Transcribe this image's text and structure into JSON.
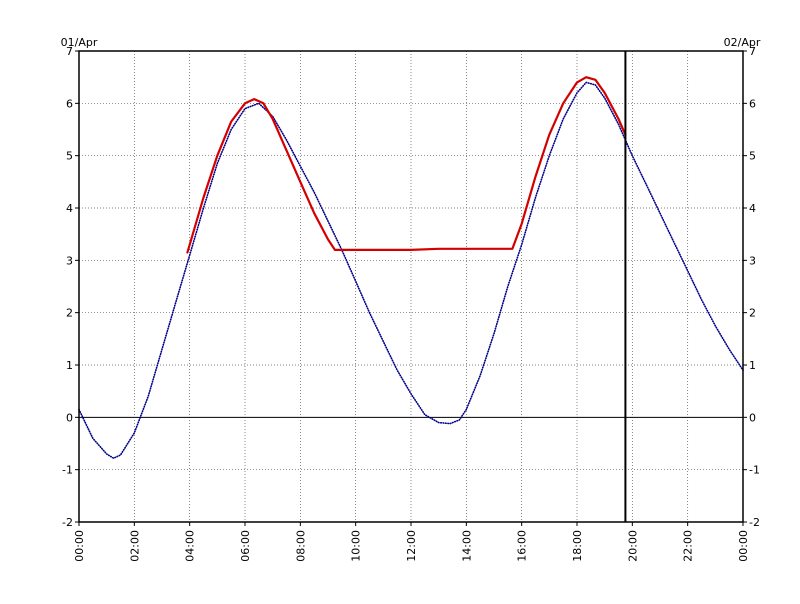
{
  "chart_data": {
    "type": "line",
    "date_labels": {
      "left": "01/Apr",
      "right": "02/Apr"
    },
    "x_ticks": [
      "00:00",
      "02:00",
      "04:00",
      "06:00",
      "08:00",
      "10:00",
      "12:00",
      "14:00",
      "16:00",
      "18:00",
      "20:00",
      "22:00",
      "00:00"
    ],
    "y_ticks": [
      "7",
      "6",
      "5",
      "4",
      "3",
      "2",
      "1",
      "0",
      "-1",
      "-2"
    ],
    "xlim": [
      "01/Apr 00:00",
      "02/Apr 00:00"
    ],
    "ylim": [
      -2,
      7
    ],
    "grid": true,
    "zero_line": 0,
    "current_time_marker": "19:45",
    "series": [
      {
        "color": "#00008b",
        "style": "dotted",
        "points": [
          [
            "00:00",
            0.15
          ],
          [
            "00:30",
            -0.4
          ],
          [
            "01:00",
            -0.7
          ],
          [
            "01:15",
            -0.78
          ],
          [
            "01:30",
            -0.72
          ],
          [
            "02:00",
            -0.3
          ],
          [
            "02:30",
            0.4
          ],
          [
            "03:00",
            1.3
          ],
          [
            "03:30",
            2.2
          ],
          [
            "04:00",
            3.1
          ],
          [
            "04:30",
            4.0
          ],
          [
            "05:00",
            4.85
          ],
          [
            "05:30",
            5.5
          ],
          [
            "06:00",
            5.9
          ],
          [
            "06:30",
            6.0
          ],
          [
            "07:00",
            5.75
          ],
          [
            "07:30",
            5.3
          ],
          [
            "08:00",
            4.8
          ],
          [
            "08:30",
            4.3
          ],
          [
            "09:00",
            3.75
          ],
          [
            "09:30",
            3.2
          ],
          [
            "10:00",
            2.6
          ],
          [
            "10:30",
            2.0
          ],
          [
            "11:00",
            1.45
          ],
          [
            "11:30",
            0.9
          ],
          [
            "12:00",
            0.45
          ],
          [
            "12:30",
            0.05
          ],
          [
            "13:00",
            -0.1
          ],
          [
            "13:25",
            -0.12
          ],
          [
            "13:45",
            -0.05
          ],
          [
            "14:00",
            0.15
          ],
          [
            "14:30",
            0.8
          ],
          [
            "15:00",
            1.6
          ],
          [
            "15:30",
            2.5
          ],
          [
            "16:00",
            3.3
          ],
          [
            "16:30",
            4.2
          ],
          [
            "17:00",
            5.0
          ],
          [
            "17:30",
            5.7
          ],
          [
            "18:00",
            6.2
          ],
          [
            "18:20",
            6.4
          ],
          [
            "18:40",
            6.35
          ],
          [
            "19:00",
            6.1
          ],
          [
            "19:30",
            5.6
          ],
          [
            "20:00",
            5.0
          ],
          [
            "20:30",
            4.45
          ],
          [
            "21:00",
            3.9
          ],
          [
            "21:30",
            3.35
          ],
          [
            "22:00",
            2.8
          ],
          [
            "22:30",
            2.25
          ],
          [
            "23:00",
            1.75
          ],
          [
            "23:30",
            1.3
          ],
          [
            "24:00",
            0.9
          ]
        ]
      },
      {
        "color": "#d40000",
        "style": "solid",
        "points": [
          [
            "03:55",
            3.15
          ],
          [
            "04:30",
            4.2
          ],
          [
            "05:00",
            5.0
          ],
          [
            "05:30",
            5.65
          ],
          [
            "06:00",
            6.0
          ],
          [
            "06:20",
            6.08
          ],
          [
            "06:40",
            6.0
          ],
          [
            "07:00",
            5.7
          ],
          [
            "07:30",
            5.1
          ],
          [
            "08:00",
            4.5
          ],
          [
            "08:30",
            3.9
          ],
          [
            "09:00",
            3.4
          ],
          [
            "09:15",
            3.2
          ],
          [
            "10:00",
            3.2
          ],
          [
            "11:00",
            3.2
          ],
          [
            "12:00",
            3.2
          ],
          [
            "13:00",
            3.22
          ],
          [
            "14:00",
            3.22
          ],
          [
            "15:00",
            3.22
          ],
          [
            "15:40",
            3.22
          ],
          [
            "16:00",
            3.7
          ],
          [
            "16:30",
            4.6
          ],
          [
            "17:00",
            5.4
          ],
          [
            "17:30",
            6.0
          ],
          [
            "18:00",
            6.4
          ],
          [
            "18:20",
            6.5
          ],
          [
            "18:40",
            6.45
          ],
          [
            "19:00",
            6.2
          ],
          [
            "19:30",
            5.7
          ],
          [
            "19:45",
            5.4
          ]
        ]
      }
    ]
  }
}
